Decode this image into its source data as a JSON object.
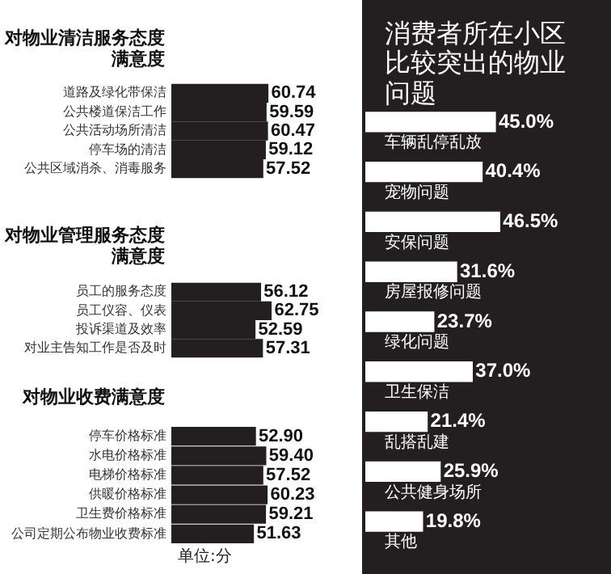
{
  "chart_data": [
    {
      "type": "bar",
      "orientation": "horizontal",
      "title": "对物业清洁服务态度满意度",
      "categories": [
        "道路及绿化带保洁",
        "公共楼道保洁工作",
        "公共活动场所清洁",
        "停车场的清洁",
        "公共区域消杀、消毒服务"
      ],
      "values": [
        60.74,
        59.59,
        60.47,
        59.12,
        57.52
      ],
      "value_labels": [
        "60.74",
        "59.59",
        "60.47",
        "59.12",
        "57.52"
      ],
      "color": "#231f20",
      "xlim": [
        0,
        120
      ],
      "tick_labels": "y"
    },
    {
      "type": "bar",
      "orientation": "horizontal",
      "title": "对物业管理服务态度满意度",
      "categories": [
        "员工的服务态度",
        "员工仪容、仪表",
        "投诉渠道及效率",
        "对业主告知工作是否及时"
      ],
      "values": [
        56.12,
        62.75,
        52.59,
        57.31
      ],
      "value_labels": [
        "56.12",
        "62.75",
        "52.59",
        "57.31"
      ],
      "color": "#231f20",
      "xlim": [
        0,
        120
      ],
      "tick_labels": "y"
    },
    {
      "type": "bar",
      "orientation": "horizontal",
      "title": "对物业收费满意度",
      "categories": [
        "停车价格标准",
        "水电价格标准",
        "电梯价格标准",
        "供暖价格标准",
        "卫生费价格标准",
        "公司定期公布物业收费标准"
      ],
      "values": [
        52.9,
        59.4,
        57.52,
        60.23,
        59.21,
        51.63
      ],
      "value_labels": [
        "52.90",
        "59.40",
        "57.52",
        "60.23",
        "59.21",
        "51.63"
      ],
      "color": "#231f20",
      "xlim": [
        0,
        120
      ],
      "tick_labels": "y",
      "annotations": [
        "单位:分"
      ]
    },
    {
      "type": "bar",
      "orientation": "horizontal",
      "title": "消费者所在小区比较突出的物业问题",
      "categories": [
        "车辆乱停乱放",
        "宠物问题",
        "安保问题",
        "房屋报修问题",
        "绿化问题",
        "卫生保洁",
        "乱搭乱建",
        "公共健身场所",
        "其他"
      ],
      "values": [
        45.0,
        40.4,
        46.5,
        31.6,
        23.7,
        37.0,
        21.4,
        25.9,
        19.8
      ],
      "value_labels": [
        "45.0%",
        "40.4%",
        "46.5%",
        "31.6%",
        "23.7%",
        "37.0%",
        "21.4%",
        "25.9%",
        "19.8%"
      ],
      "color": "#ffffff",
      "xlim": [
        0,
        85
      ],
      "tick_labels": false
    }
  ]
}
